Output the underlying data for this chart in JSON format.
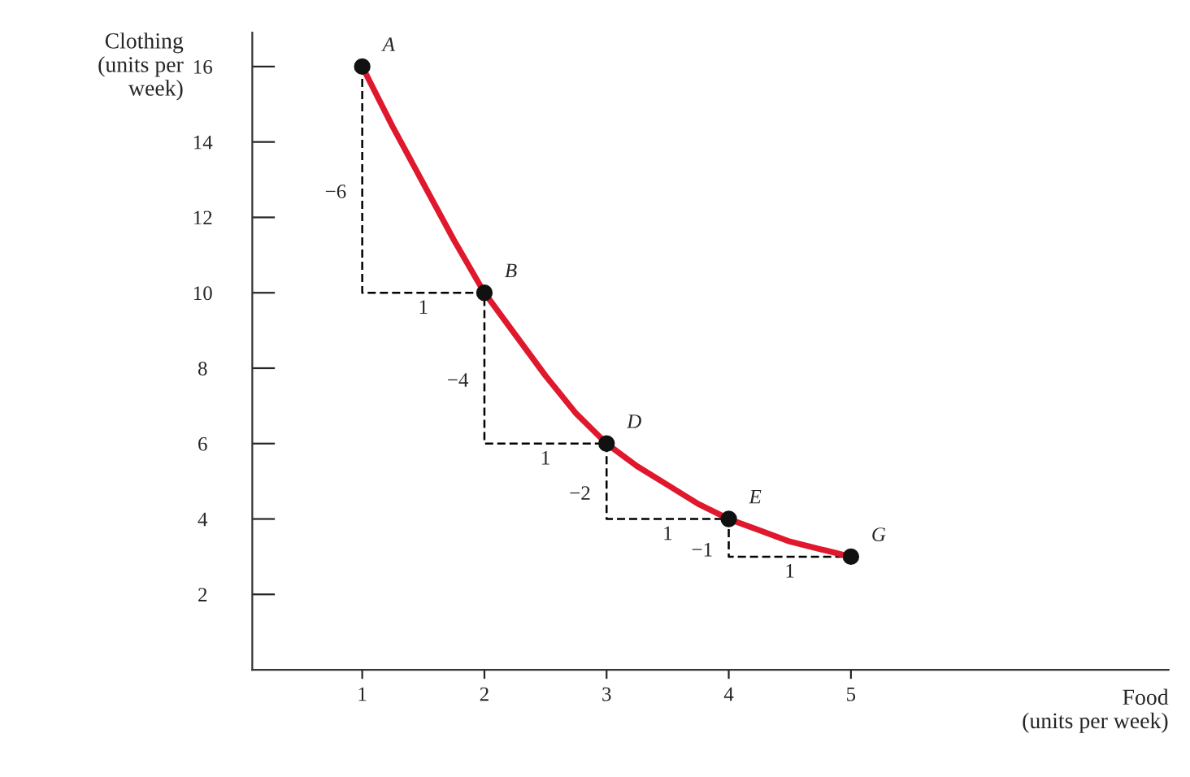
{
  "chart_data": {
    "type": "line",
    "xlabel": "Food\n(units per week)",
    "ylabel": "Clothing\n(units per\nweek)",
    "xlim": [
      0.1,
      7.6
    ],
    "ylim": [
      0,
      16.9
    ],
    "xticks": [
      1,
      2,
      3,
      4,
      5
    ],
    "yticks": [
      2,
      4,
      6,
      8,
      10,
      12,
      14,
      16
    ],
    "grid": false,
    "legend": false,
    "series": [
      {
        "color": "#000000",
        "line_style": "dashed",
        "x": [
          1,
          1,
          2,
          2,
          3,
          3,
          4,
          4,
          5
        ],
        "values": [
          16,
          10,
          10,
          6,
          6,
          4,
          4,
          3,
          3
        ]
      },
      {
        "color": "#e0182d",
        "line_style": "solid",
        "x": [
          1,
          1.25,
          1.5,
          1.75,
          2,
          2.25,
          2.5,
          2.75,
          3,
          3.25,
          3.5,
          3.75,
          4,
          4.25,
          4.5,
          4.75,
          5
        ],
        "values": [
          16,
          14.4,
          12.9,
          11.4,
          10,
          8.9,
          7.8,
          6.8,
          6,
          5.4,
          4.9,
          4.4,
          4,
          3.7,
          3.4,
          3.2,
          3
        ]
      },
      {
        "type": "scatter",
        "color": "#111111",
        "marker": "circle",
        "x": [
          1,
          2,
          3,
          4,
          5
        ],
        "values": [
          16,
          10,
          6,
          4,
          3
        ]
      }
    ],
    "annotations": [
      {
        "text": "A",
        "x": 1,
        "y": 16
      },
      {
        "text": "B",
        "x": 2,
        "y": 10
      },
      {
        "text": "D",
        "x": 3,
        "y": 6
      },
      {
        "text": "E",
        "x": 4,
        "y": 4
      },
      {
        "text": "G",
        "x": 5,
        "y": 3
      },
      {
        "text": "−6",
        "x": 1,
        "y": 13
      },
      {
        "text": "1",
        "x": 1.5,
        "y": 10
      },
      {
        "text": "−4",
        "x": 2,
        "y": 8
      },
      {
        "text": "1",
        "x": 2.5,
        "y": 6
      },
      {
        "text": "−2",
        "x": 3,
        "y": 5
      },
      {
        "text": "1",
        "x": 3.5,
        "y": 4
      },
      {
        "text": "−1",
        "x": 4,
        "y": 3.5
      },
      {
        "text": "1",
        "x": 4.5,
        "y": 3
      }
    ]
  }
}
